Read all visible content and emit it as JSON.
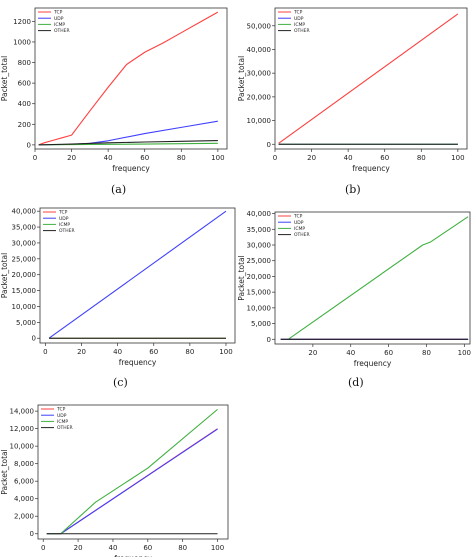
{
  "chart_data": [
    {
      "type": "line",
      "caption": "(a)",
      "xlabel": "frequency",
      "ylabel": "Packet_total",
      "xlim": [
        0,
        105
      ],
      "ylim": [
        -40,
        1330
      ],
      "xticks": [
        0,
        20,
        40,
        60,
        80,
        100
      ],
      "yticks": [
        0,
        200,
        400,
        600,
        800,
        1000,
        1200
      ],
      "ytick_labels": [
        "0",
        "200",
        "400",
        "600",
        "800",
        "1000",
        "1200"
      ],
      "legend": "top-left",
      "series": [
        {
          "name": "TCP",
          "color": "#ff4040",
          "points": [
            [
              2,
              0
            ],
            [
              5,
              20
            ],
            [
              10,
              45
            ],
            [
              15,
              70
            ],
            [
              20,
              95
            ],
            [
              30,
              330
            ],
            [
              40,
              560
            ],
            [
              50,
              780
            ],
            [
              60,
              900
            ],
            [
              70,
              990
            ],
            [
              80,
              1090
            ],
            [
              90,
              1190
            ],
            [
              100,
              1290
            ]
          ]
        },
        {
          "name": "UDP",
          "color": "#4040ff",
          "points": [
            [
              2,
              0
            ],
            [
              20,
              5
            ],
            [
              30,
              15
            ],
            [
              40,
              40
            ],
            [
              60,
              110
            ],
            [
              80,
              170
            ],
            [
              100,
              230
            ]
          ]
        },
        {
          "name": "ICMP",
          "color": "#40b040",
          "points": [
            [
              2,
              0
            ],
            [
              20,
              3
            ],
            [
              60,
              8
            ],
            [
              100,
              15
            ]
          ]
        },
        {
          "name": "OTHER",
          "color": "#222222",
          "points": [
            [
              2,
              0
            ],
            [
              20,
              8
            ],
            [
              40,
              20
            ],
            [
              60,
              28
            ],
            [
              80,
              35
            ],
            [
              100,
              42
            ]
          ]
        }
      ]
    },
    {
      "type": "line",
      "caption": "(b)",
      "xlabel": "frequency",
      "ylabel": "Packet_total",
      "xlim": [
        0,
        105
      ],
      "ylim": [
        -2000,
        57500
      ],
      "xticks": [
        0,
        20,
        40,
        60,
        80,
        100
      ],
      "yticks": [
        0,
        10000,
        20000,
        30000,
        40000,
        50000
      ],
      "ytick_labels": [
        "0",
        "10,000",
        "20,000",
        "30,000",
        "40,000",
        "50,000"
      ],
      "legend": "top-left",
      "series": [
        {
          "name": "TCP",
          "color": "#ff4040",
          "points": [
            [
              2,
              400
            ],
            [
              100,
              55000
            ]
          ]
        },
        {
          "name": "UDP",
          "color": "#4040ff",
          "points": [
            [
              2,
              0
            ],
            [
              100,
              0
            ]
          ]
        },
        {
          "name": "ICMP",
          "color": "#40b040",
          "points": [
            [
              2,
              0
            ],
            [
              100,
              0
            ]
          ]
        },
        {
          "name": "OTHER",
          "color": "#222222",
          "points": [
            [
              2,
              0
            ],
            [
              100,
              0
            ]
          ]
        }
      ]
    },
    {
      "type": "line",
      "caption": "(c)",
      "xlabel": "frequency",
      "ylabel": "Packet_total",
      "xlim": [
        -3,
        105
      ],
      "ylim": [
        -1500,
        41000
      ],
      "xticks": [
        0,
        20,
        40,
        60,
        80,
        100
      ],
      "yticks": [
        0,
        5000,
        10000,
        15000,
        20000,
        25000,
        30000,
        35000,
        40000
      ],
      "ytick_labels": [
        "0",
        "5,000",
        "10,000",
        "15,000",
        "20,000",
        "25,000",
        "30,000",
        "35,000",
        "40,000"
      ],
      "legend": "top-left",
      "series": [
        {
          "name": "TCP",
          "color": "#ff4040",
          "points": [
            [
              2,
              0
            ],
            [
              100,
              0
            ]
          ]
        },
        {
          "name": "UDP",
          "color": "#4040ff",
          "points": [
            [
              2,
              0
            ],
            [
              100,
              40000
            ]
          ]
        },
        {
          "name": "ICMP",
          "color": "#40b040",
          "points": [
            [
              2,
              0
            ],
            [
              100,
              0
            ]
          ]
        },
        {
          "name": "OTHER",
          "color": "#222222",
          "points": [
            [
              2,
              0
            ],
            [
              100,
              0
            ]
          ]
        }
      ]
    },
    {
      "type": "line",
      "caption": "(d)",
      "xlabel": "frequency",
      "ylabel": "Packet_total",
      "xlim": [
        0,
        103
      ],
      "ylim": [
        -1500,
        40500
      ],
      "xticks": [
        20,
        40,
        60,
        80,
        100
      ],
      "yticks": [
        0,
        5000,
        10000,
        15000,
        20000,
        25000,
        30000,
        35000,
        40000
      ],
      "ytick_labels": [
        "0",
        "5,000",
        "10,000",
        "15,000",
        "20,000",
        "25,000",
        "30,000",
        "35,000",
        "40,000"
      ],
      "legend": "top-left",
      "series": [
        {
          "name": "TCP",
          "color": "#ff4040",
          "points": [
            [
              3,
              0
            ],
            [
              102,
              0
            ]
          ]
        },
        {
          "name": "UDP",
          "color": "#4040ff",
          "points": [
            [
              3,
              0
            ],
            [
              102,
              0
            ]
          ]
        },
        {
          "name": "ICMP",
          "color": "#40b040",
          "points": [
            [
              7,
              0
            ],
            [
              78,
              30000
            ],
            [
              82,
              30900
            ],
            [
              102,
              39000
            ]
          ]
        },
        {
          "name": "OTHER",
          "color": "#222222",
          "points": [
            [
              3,
              0
            ],
            [
              102,
              0
            ]
          ]
        }
      ]
    },
    {
      "type": "line",
      "caption": "",
      "xlabel": "frequency",
      "ylabel": "Packet_total",
      "xlim": [
        -3,
        106
      ],
      "ylim": [
        -600,
        14700
      ],
      "xticks": [
        0,
        20,
        40,
        60,
        80,
        100
      ],
      "yticks": [
        0,
        2000,
        4000,
        6000,
        8000,
        10000,
        12000,
        14000
      ],
      "ytick_labels": [
        "0",
        "2,000",
        "4,000",
        "6,000",
        "8,000",
        "10,000",
        "12,000",
        "14,000"
      ],
      "legend": "top-left",
      "series": [
        {
          "name": "TCP",
          "color": "#ff4040",
          "points": [
            [
              2,
              0
            ],
            [
              10,
              0
            ],
            [
              100,
              12000
            ]
          ]
        },
        {
          "name": "UDP",
          "color": "#4040ff",
          "points": [
            [
              2,
              0
            ],
            [
              10,
              0
            ],
            [
              100,
              11950
            ]
          ]
        },
        {
          "name": "ICMP",
          "color": "#40b040",
          "points": [
            [
              2,
              0
            ],
            [
              10,
              0
            ],
            [
              30,
              3600
            ],
            [
              60,
              7500
            ],
            [
              100,
              14200
            ]
          ]
        },
        {
          "name": "OTHER",
          "color": "#222222",
          "points": [
            [
              2,
              0
            ],
            [
              100,
              0
            ]
          ]
        }
      ]
    }
  ]
}
